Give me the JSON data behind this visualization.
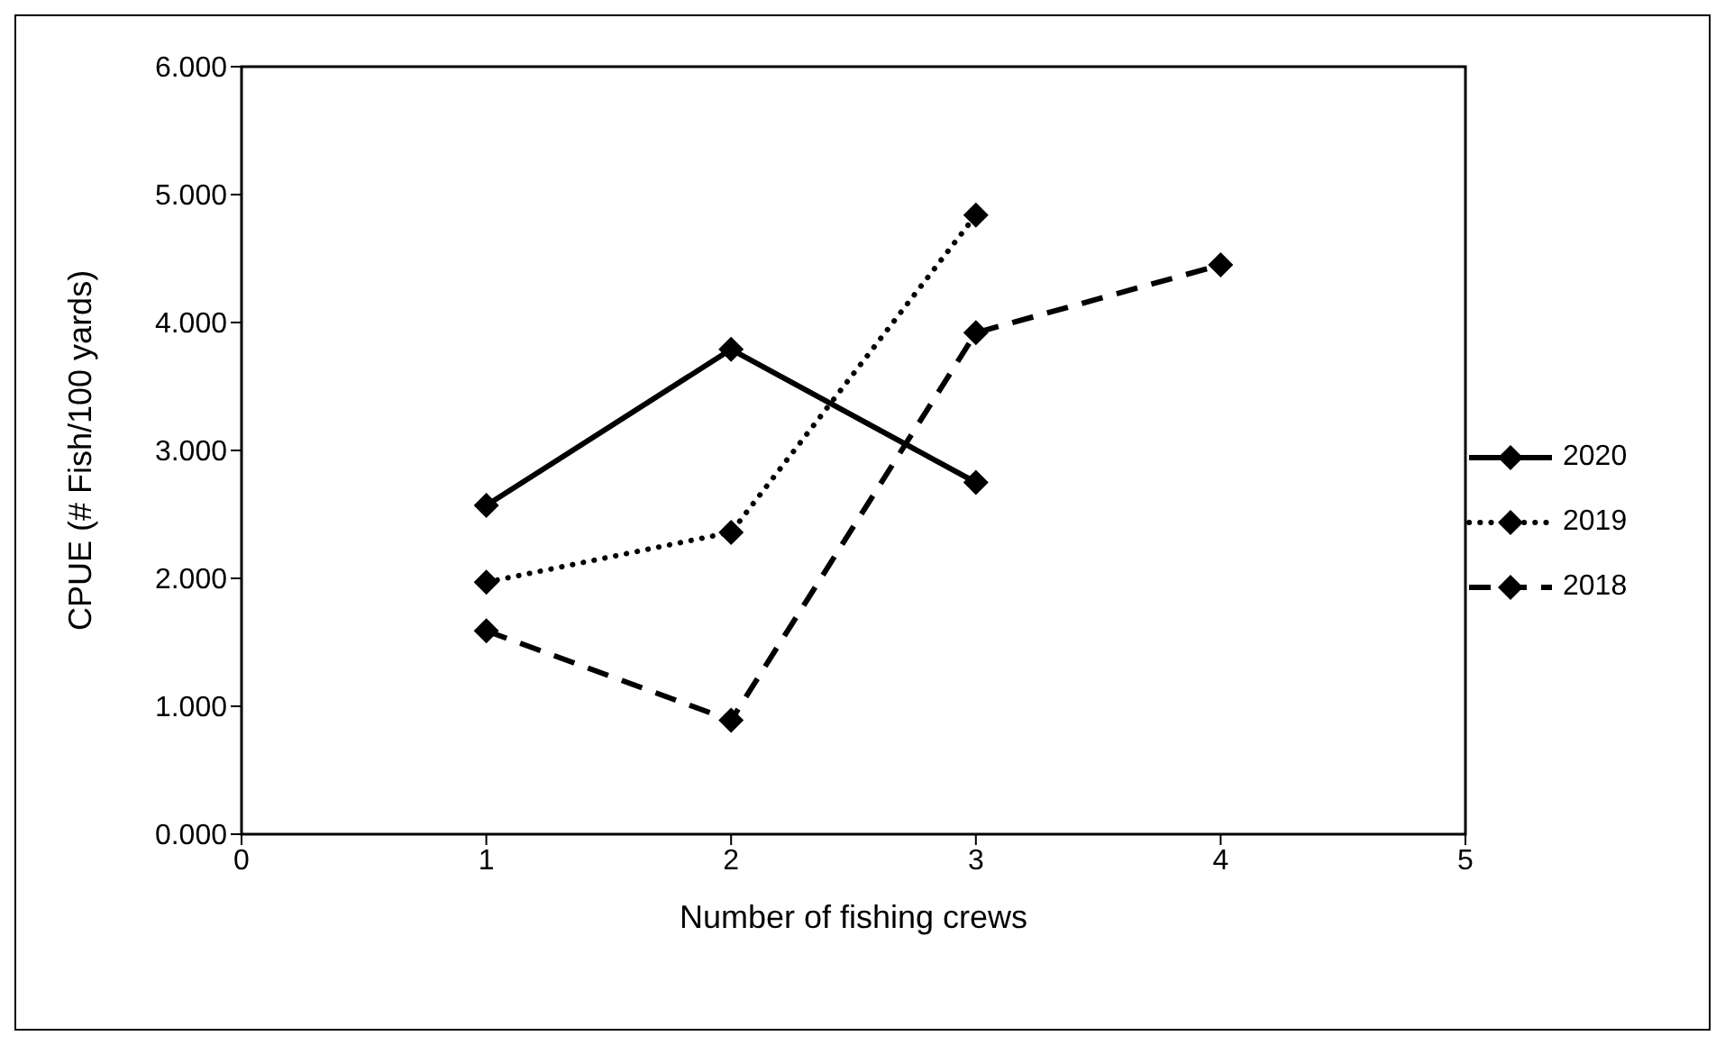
{
  "chart_data": {
    "type": "line",
    "xlabel": "Number of fishing crews",
    "ylabel": "CPUE (# Fish/100 yards)",
    "x": [
      1,
      2,
      3,
      4
    ],
    "series": [
      {
        "name": "2020",
        "color": "#000000",
        "line_style": "solid",
        "values": [
          2.57,
          3.79,
          2.75,
          null
        ]
      },
      {
        "name": "2019",
        "color": "#000000",
        "line_style": "dotted",
        "values": [
          1.97,
          2.36,
          4.84,
          null
        ]
      },
      {
        "name": "2018",
        "color": "#000000",
        "line_style": "dashed",
        "values": [
          1.59,
          0.89,
          3.92,
          4.45
        ]
      }
    ],
    "xlim": [
      0,
      5
    ],
    "xticks": [
      0,
      1,
      2,
      3,
      4,
      5
    ],
    "ylim": [
      0,
      6
    ],
    "yticks": [
      {
        "value": 0,
        "label": "0.000"
      },
      {
        "value": 1,
        "label": "1.000"
      },
      {
        "value": 2,
        "label": "2.000"
      },
      {
        "value": 3,
        "label": "3.000"
      },
      {
        "value": 4,
        "label": "4.000"
      },
      {
        "value": 5,
        "label": "5.000"
      },
      {
        "value": 6,
        "label": "6.000"
      }
    ],
    "grid": false,
    "legend": "right",
    "marker": "diamond"
  }
}
